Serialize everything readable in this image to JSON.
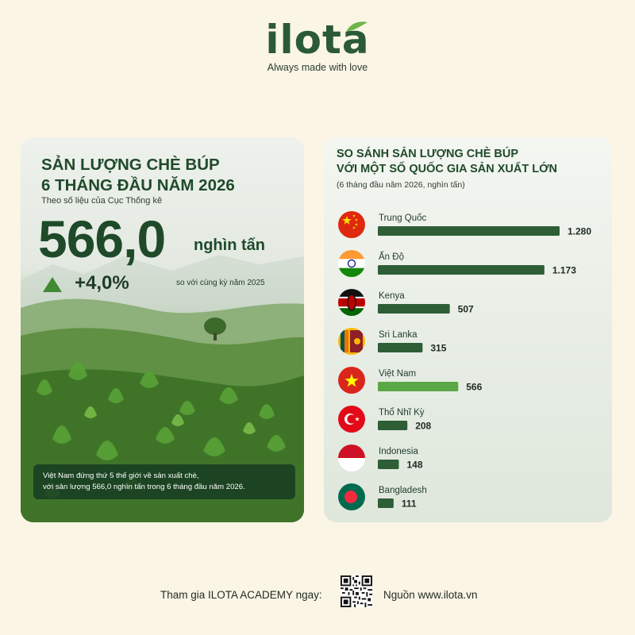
{
  "brand": {
    "logo_text": "ilota",
    "tagline": "Always made with love"
  },
  "left_card": {
    "title_line1": "SẢN LƯỢNG CHÈ BÚP",
    "title_line2": "6 THÁNG ĐẦU NĂM 2026",
    "source": "Theo số liệu của Cục Thống kê",
    "big_value": "566,0",
    "big_unit": "nghìn tấn",
    "growth": "+4,0%",
    "growth_note": "so với cùng kỳ năm 2025",
    "caption_line1": "Việt Nam đứng thứ 5 thế giới về sản xuất chè,",
    "caption_line2": "với sản lượng 566,0 nghìn tấn trong 6 tháng đầu năm 2026."
  },
  "chart_data": {
    "type": "bar",
    "title_line1": "SO SÁNH SẢN LƯỢNG CHÈ BÚP",
    "title_line2": "VỚI MỘT SỐ QUỐC GIA SẢN XUẤT LỚN",
    "subtitle": "(6 tháng đầu năm 2026, nghìn tấn)",
    "categories": [
      "Trung Quốc",
      "Ấn Độ",
      "Kenya",
      "Sri Lanka",
      "Việt Nam",
      "Thổ Nhĩ Kỳ",
      "Indonesia",
      "Bangladesh"
    ],
    "values": [
      1280,
      1173,
      507,
      315,
      566,
      208,
      148,
      111
    ],
    "value_labels": [
      "1.280",
      "1.173",
      "507",
      "315",
      "566",
      "208",
      "148",
      "111"
    ],
    "flags": [
      "china-flag-icon",
      "india-flag-icon",
      "kenya-flag-icon",
      "sri-lanka-flag-icon",
      "vietnam-flag-icon",
      "turkey-flag-icon",
      "indonesia-flag-icon",
      "bangladesh-flag-icon"
    ],
    "highlight": "Việt Nam",
    "bar_color": "#2e5e35",
    "highlight_color": "#5aa845",
    "xlim": [
      0,
      1280
    ]
  },
  "footer": {
    "join_text": "Tham gia ILOTA ACADEMY ngay:",
    "source_text": "Nguồn www.ilota.vn",
    "qr_icon": "qr-code-icon"
  }
}
